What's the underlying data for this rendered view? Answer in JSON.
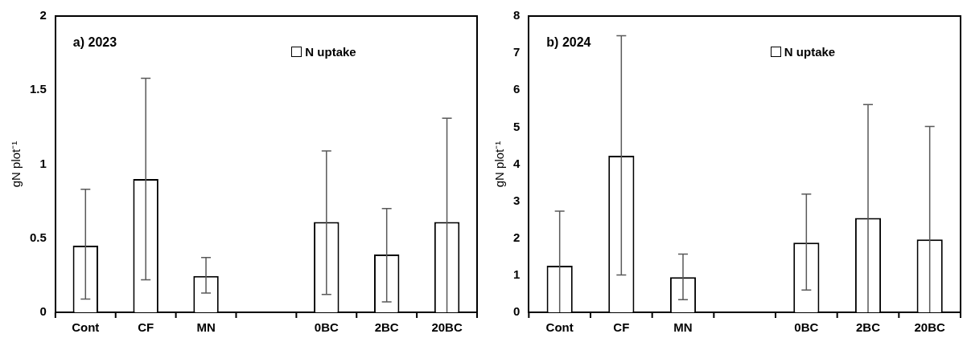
{
  "chart_data": [
    {
      "type": "bar",
      "title": "a) 2023",
      "ylabel": "gN plot⁻¹",
      "categories": [
        "Cont",
        "CF",
        "MN",
        null,
        "0BC",
        "2BC",
        "20BC"
      ],
      "series": [
        {
          "name": "N uptake",
          "color": "#ffffff",
          "values": [
            0.45,
            0.9,
            0.245,
            null,
            0.61,
            0.39,
            0.61
          ],
          "errors": [
            [
              0.09,
              0.83
            ],
            [
              0.22,
              1.58
            ],
            [
              0.13,
              0.37
            ],
            null,
            [
              0.12,
              1.09
            ],
            [
              0.07,
              0.7
            ],
            [
              0,
              1.31
            ]
          ]
        }
      ],
      "ylim": [
        0,
        2
      ],
      "yticks": [
        0,
        0.5,
        1,
        1.5,
        2
      ],
      "grid": false,
      "legend": "top right"
    },
    {
      "type": "bar",
      "title": "b) 2024",
      "ylabel": "gN plot⁻¹",
      "categories": [
        "Cont",
        "CF",
        "MN",
        null,
        "0BC",
        "2BC",
        "20BC"
      ],
      "series": [
        {
          "name": "N uptake",
          "color": "#ffffff",
          "values": [
            1.26,
            4.23,
            0.95,
            null,
            1.88,
            2.55,
            1.97
          ],
          "errors": [
            [
              0,
              2.73
            ],
            [
              1.01,
              7.47
            ],
            [
              0.34,
              1.57
            ],
            null,
            [
              0.6,
              3.19
            ],
            [
              0,
              5.61
            ],
            [
              0,
              5.02
            ]
          ]
        }
      ],
      "ylim": [
        0,
        8
      ],
      "yticks": [
        0,
        1,
        2,
        3,
        4,
        5,
        6,
        7,
        8
      ],
      "grid": false,
      "legend": "top right"
    }
  ]
}
